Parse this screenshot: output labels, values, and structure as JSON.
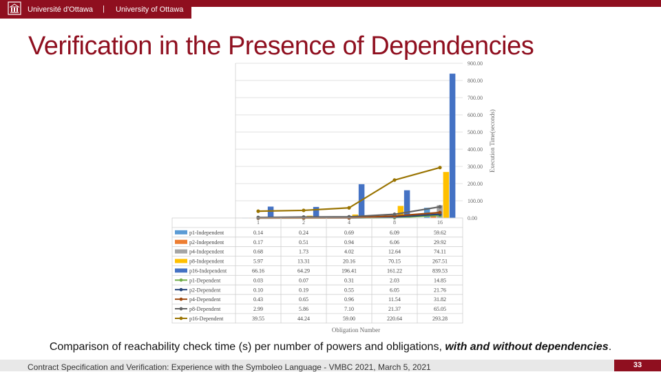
{
  "header": {
    "university_fr": "Université d'Ottawa",
    "separator": "|",
    "university_en": "University of Ottawa"
  },
  "slide": {
    "title": "Verification in the Presence of Dependencies",
    "caption_plain": "Comparison of reachability check time (s) per number of powers and obligations, ",
    "caption_emph": "with and without dependencies",
    "caption_end": ".",
    "footer": "Contract Specification and Verification: Experience with the Symboleo Language - VMBC 2021, March 5, 2021",
    "page_number": "33"
  },
  "chart_data": {
    "type": "bar",
    "categories": [
      "1",
      "2",
      "4",
      "8",
      "16"
    ],
    "xlabel": "Obligation Number",
    "ylabel": "Execution Time(seconds)",
    "ylim": [
      0,
      900
    ],
    "yticks": [
      "0.00",
      "100.00",
      "200.00",
      "300.00",
      "400.00",
      "500.00",
      "600.00",
      "700.00",
      "800.00",
      "900.00"
    ],
    "grid": true,
    "legend": "table-below",
    "bar_series": [
      {
        "name": "p1-Independent",
        "color": "#5b9bd5",
        "values": [
          0.14,
          0.24,
          0.69,
          6.09,
          59.62
        ]
      },
      {
        "name": "p2-Independent",
        "color": "#ed7d31",
        "values": [
          0.17,
          0.51,
          0.94,
          6.06,
          29.92
        ]
      },
      {
        "name": "p4-Independent",
        "color": "#a5a5a5",
        "values": [
          0.68,
          1.73,
          4.02,
          12.64,
          74.11
        ]
      },
      {
        "name": "p8-Independent",
        "color": "#ffc000",
        "values": [
          5.97,
          13.31,
          20.16,
          70.15,
          267.51
        ]
      },
      {
        "name": "p16-Independent",
        "color": "#4472c4",
        "values": [
          66.16,
          64.29,
          196.41,
          161.22,
          839.53
        ]
      }
    ],
    "line_series": [
      {
        "name": "p1-Dependent",
        "color": "#70ad47",
        "values": [
          0.03,
          0.07,
          0.31,
          2.03,
          14.85
        ]
      },
      {
        "name": "p2-Dependent",
        "color": "#264478",
        "values": [
          0.1,
          0.19,
          0.55,
          6.05,
          21.76
        ]
      },
      {
        "name": "p4-Dependent",
        "color": "#9e480e",
        "values": [
          0.43,
          0.65,
          0.96,
          11.54,
          31.82
        ]
      },
      {
        "name": "p8-Dependent",
        "color": "#636363",
        "values": [
          2.99,
          5.86,
          7.1,
          21.37,
          65.05
        ]
      },
      {
        "name": "p16-Dependent",
        "color": "#997300",
        "values": [
          39.55,
          44.24,
          59.0,
          220.64,
          293.28
        ]
      }
    ],
    "table_rows": [
      {
        "name": "p1-Independent",
        "cells": [
          "0.14",
          "0.24",
          "0.69",
          "6.09",
          "59.62"
        ]
      },
      {
        "name": "p2-Independent",
        "cells": [
          "0.17",
          "0.51",
          "0.94",
          "6.06",
          "29.92"
        ]
      },
      {
        "name": "p4-Independent",
        "cells": [
          "0.68",
          "1.73",
          "4.02",
          "12.64",
          "74.11"
        ]
      },
      {
        "name": "p8-Independent",
        "cells": [
          "5.97",
          "13.31",
          "20.16",
          "70.15",
          "267.51"
        ]
      },
      {
        "name": "p16-Independent",
        "cells": [
          "66.16",
          "64.29",
          "196.41",
          "161.22",
          "839.53"
        ]
      },
      {
        "name": "p1-Dependent",
        "cells": [
          "0.03",
          "0.07",
          "0.31",
          "2.03",
          "14.85"
        ]
      },
      {
        "name": "p2-Dependent",
        "cells": [
          "0.10",
          "0.19",
          "0.55",
          "6.05",
          "21.76"
        ]
      },
      {
        "name": "p4-Dependent",
        "cells": [
          "0.43",
          "0.65",
          "0.96",
          "11.54",
          "31.82"
        ]
      },
      {
        "name": "p8-Dependent",
        "cells": [
          "2.99",
          "5.86",
          "7.10",
          "21.37",
          "65.05"
        ]
      },
      {
        "name": "p16-Dependent",
        "cells": [
          "39.55",
          "44.24",
          "59.00",
          "220.64",
          "293.28"
        ]
      }
    ]
  }
}
